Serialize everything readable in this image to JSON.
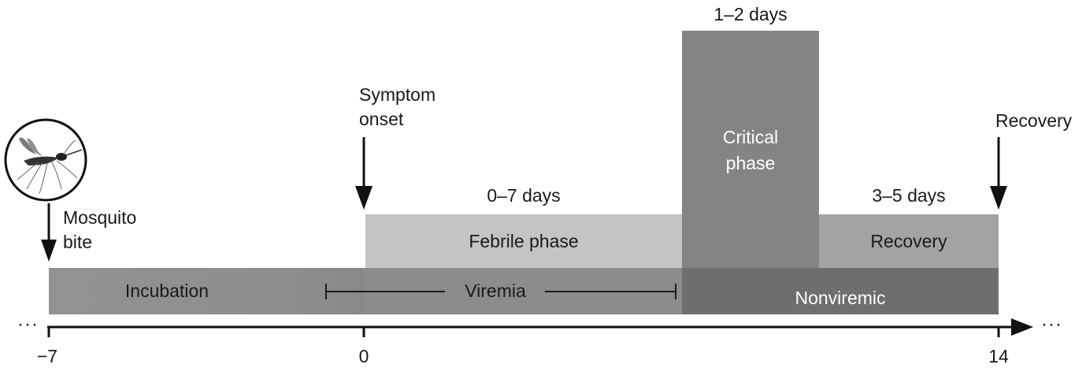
{
  "timeline": {
    "tick_labels": {
      "start": "−7",
      "onset": "0",
      "end": "14"
    },
    "ellipsis_left": "···",
    "ellipsis_right": "···"
  },
  "events": {
    "mosquito_bite": [
      "Mosquito",
      "bite"
    ],
    "symptom_onset": [
      "Symptom",
      "onset"
    ],
    "recovery": "Recovery"
  },
  "phases": {
    "incubation": "Incubation",
    "viremia": "Viremia",
    "nonviremic": "Nonviremic",
    "febrile": "Febrile phase",
    "febrile_duration": "0–7 days",
    "critical": [
      "Critical",
      "phase"
    ],
    "critical_duration": "1–2 days",
    "recovery": "Recovery",
    "recovery_duration": "3–5 days"
  },
  "colors": {
    "incubation_bar": "#8f8f8f",
    "viremia_bar": "#8c8c8c",
    "nonviremic_bar": "#6e6e6e",
    "febrile_bar": "#c4c4c4",
    "critical_bar": "#848484",
    "recovery_bar": "#a3a3a3",
    "axis": "#111111"
  },
  "icons": {
    "mosquito": "mosquito-icon"
  }
}
